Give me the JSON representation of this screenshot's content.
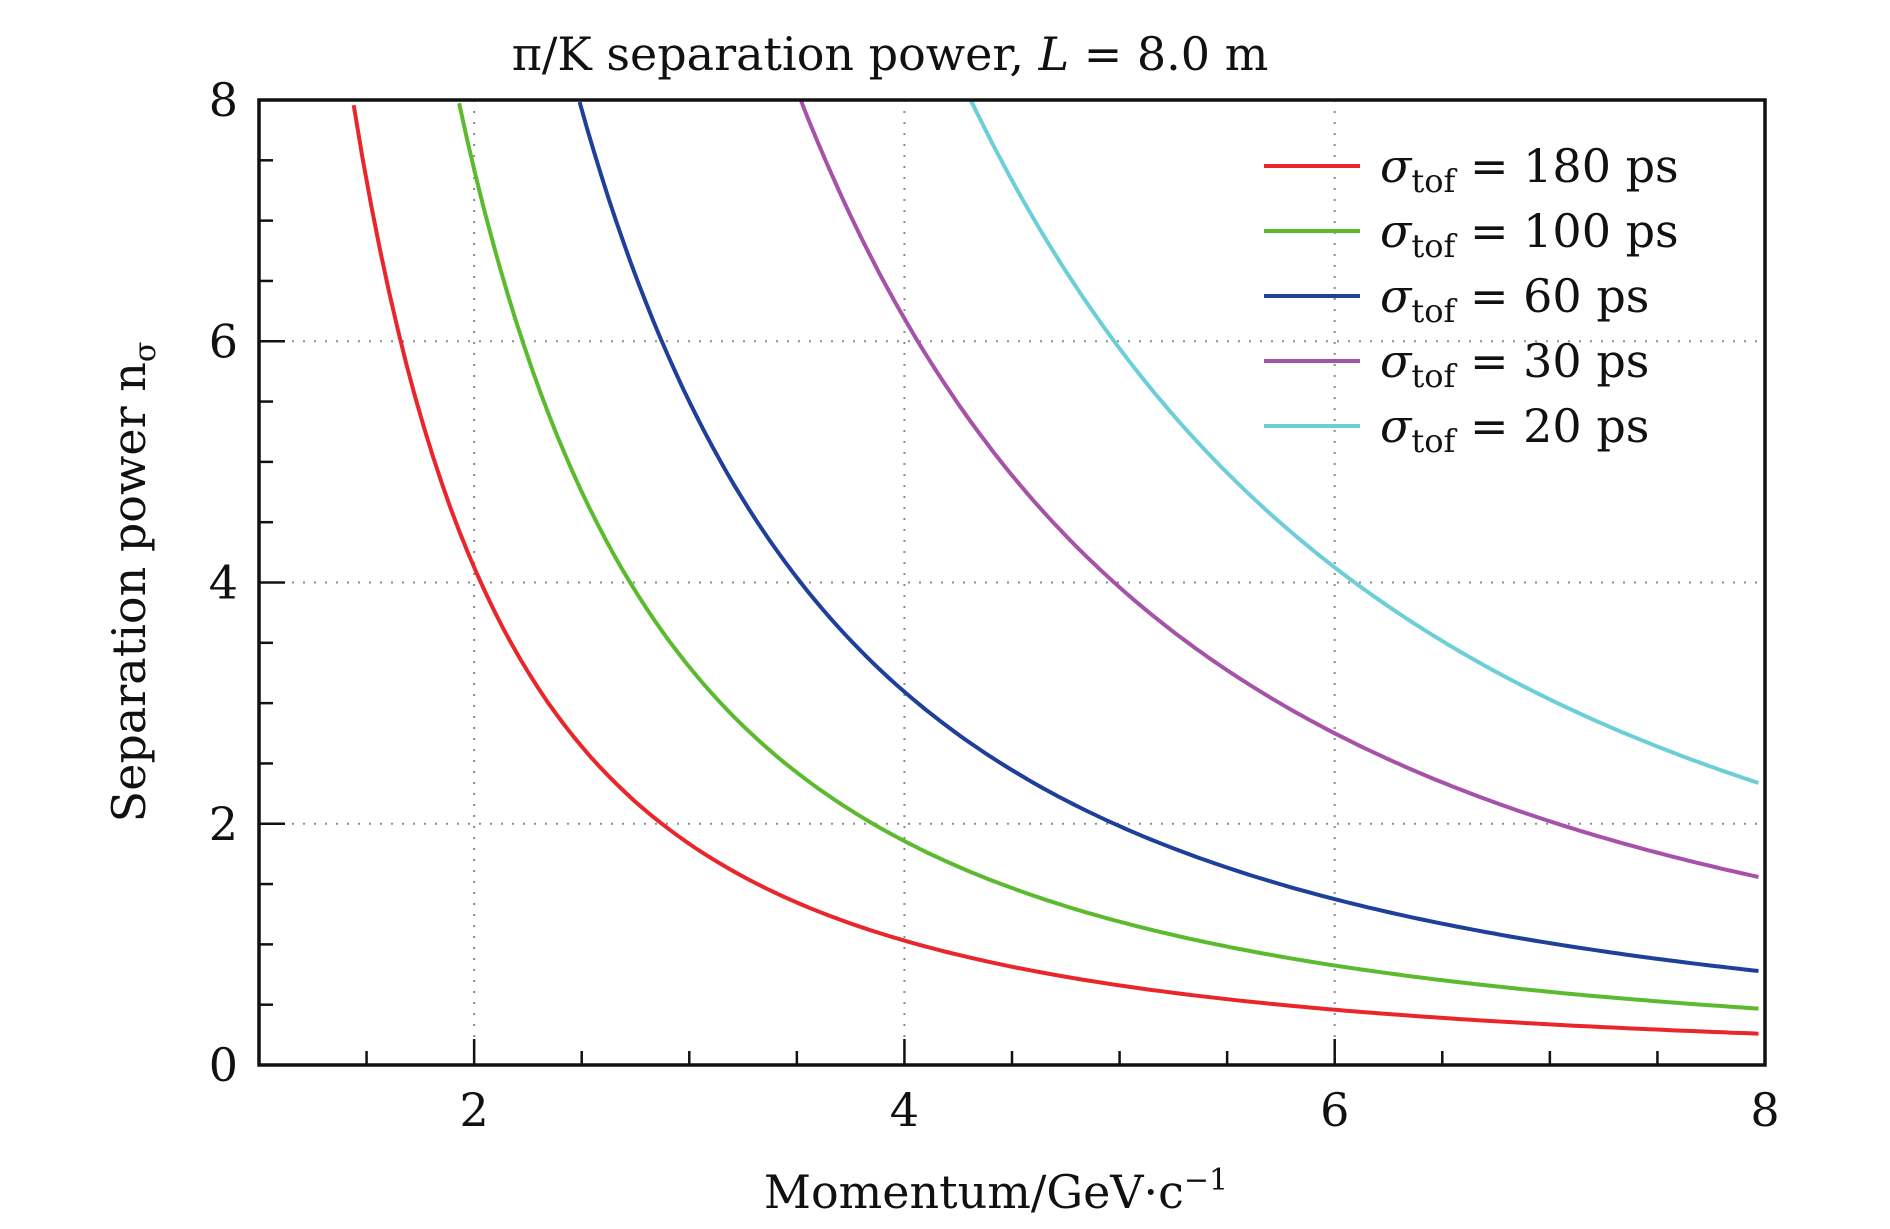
{
  "chart_data": {
    "type": "line",
    "title_pre": "π/K separation power, ",
    "title_var": "L",
    "title_post": " = 8.0 m",
    "xlabel": "Momentum/GeV·c",
    "xlabel_sup": "−1",
    "ylabel": "Separation power n",
    "ylabel_sub": "σ",
    "xlim": [
      1,
      8
    ],
    "ylim": [
      0,
      8
    ],
    "x_ticks": [
      2,
      4,
      6,
      8
    ],
    "y_ticks": [
      0,
      2,
      4,
      6,
      8
    ],
    "grid": true,
    "legend_position": "top-right",
    "legend_symbol": "σ",
    "legend_sub": "tof",
    "legend_eq": " = ",
    "series": [
      {
        "label": "180 ps",
        "color": "#e8262b",
        "k": 16.5,
        "x": [
          1.44,
          1.5,
          1.6,
          1.7,
          1.8,
          1.9,
          2.0,
          2.2,
          2.4,
          2.6,
          2.8,
          3.0,
          3.2,
          3.5,
          4.0,
          4.5,
          5.0,
          5.5,
          6.0,
          6.5,
          7.0,
          7.5,
          7.97
        ],
        "y": [
          8.0,
          7.35,
          6.45,
          5.71,
          5.09,
          4.57,
          4.13,
          3.41,
          2.86,
          2.44,
          2.11,
          1.83,
          1.61,
          1.35,
          1.03,
          0.82,
          0.66,
          0.55,
          0.46,
          0.39,
          0.34,
          0.29,
          0.26
        ]
      },
      {
        "label": "100 ps",
        "color": "#5cba2f",
        "k": 29.7,
        "x": [
          1.93,
          2.0,
          2.2,
          2.4,
          2.6,
          2.8,
          3.0,
          3.3,
          3.6,
          4.0,
          4.5,
          5.0,
          5.5,
          6.0,
          6.5,
          7.0,
          7.5,
          7.97
        ],
        "y": [
          8.0,
          7.43,
          6.14,
          5.16,
          4.39,
          3.79,
          3.3,
          2.73,
          2.29,
          1.86,
          1.47,
          1.19,
          0.98,
          0.83,
          0.7,
          0.61,
          0.53,
          0.47
        ]
      },
      {
        "label": "60 ps",
        "color": "#1e3f9a",
        "k": 49.5,
        "x": [
          2.49,
          2.6,
          2.8,
          3.0,
          3.3,
          3.6,
          4.0,
          4.5,
          5.0,
          5.5,
          6.0,
          6.5,
          7.0,
          7.5,
          7.97
        ],
        "y": [
          8.0,
          7.32,
          6.31,
          5.5,
          4.55,
          3.82,
          3.09,
          2.44,
          1.98,
          1.64,
          1.38,
          1.17,
          1.01,
          0.88,
          0.78
        ]
      },
      {
        "label": "30 ps",
        "color": "#a552a8",
        "k": 99,
        "x": [
          3.52,
          3.7,
          4.0,
          4.3,
          4.6,
          5.0,
          5.5,
          6.0,
          6.5,
          7.0,
          7.5,
          7.97
        ],
        "y": [
          8.0,
          7.23,
          6.19,
          5.35,
          4.68,
          3.96,
          3.27,
          2.75,
          2.34,
          2.02,
          1.76,
          1.56
        ]
      },
      {
        "label": "20 ps",
        "color": "#6ccfd8",
        "k": 148.5,
        "x": [
          4.31,
          4.5,
          4.8,
          5.0,
          5.3,
          5.6,
          6.0,
          6.5,
          7.0,
          7.5,
          7.97
        ],
        "y": [
          8.0,
          7.33,
          6.45,
          5.94,
          5.29,
          4.73,
          4.13,
          3.51,
          3.03,
          2.64,
          2.34
        ]
      }
    ]
  }
}
